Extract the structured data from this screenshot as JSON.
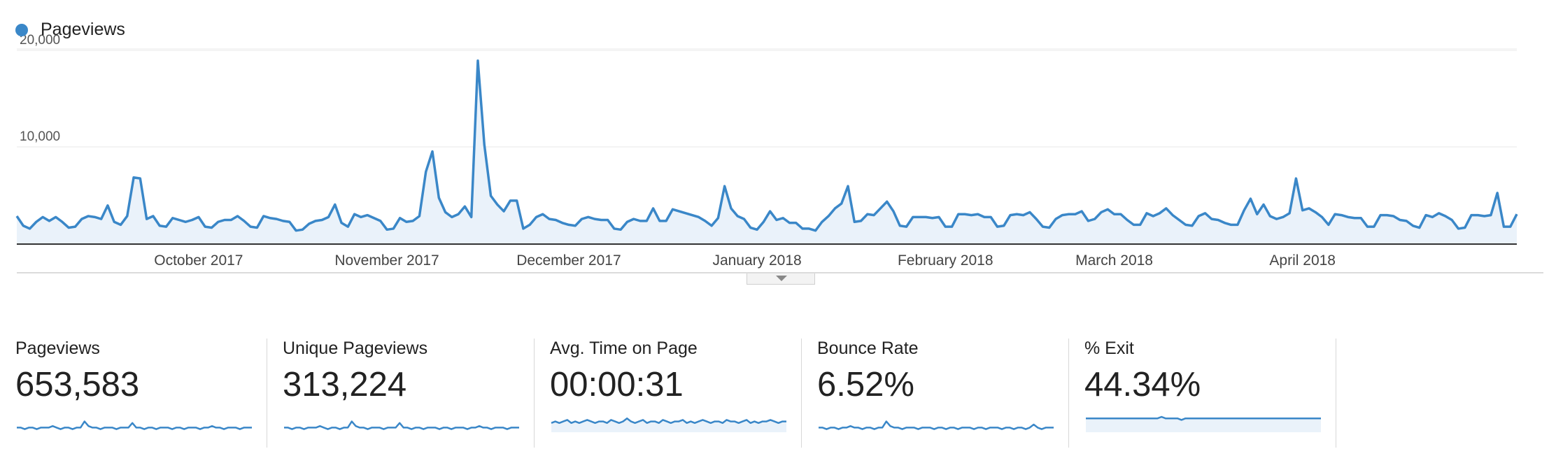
{
  "legend": {
    "label": "Pageviews",
    "color": "#3a87c8"
  },
  "chart_data": {
    "type": "area",
    "title": "",
    "xlabel": "",
    "ylabel": "",
    "series": [
      {
        "name": "Pageviews",
        "values": [
          2900,
          1900,
          1600,
          2300,
          2800,
          2400,
          2800,
          2300,
          1700,
          1800,
          2600,
          2900,
          2800,
          2600,
          4000,
          2300,
          2000,
          2900,
          6900,
          6800,
          2600,
          2900,
          1900,
          1800,
          2700,
          2500,
          2300,
          2500,
          2800,
          1800,
          1700,
          2300,
          2500,
          2500,
          2900,
          2400,
          1800,
          1700,
          2900,
          2700,
          2600,
          2400,
          2300,
          1400,
          1500,
          2100,
          2400,
          2500,
          2800,
          4100,
          2200,
          1800,
          3100,
          2800,
          3000,
          2700,
          2400,
          1500,
          1600,
          2700,
          2300,
          2400,
          2900,
          7500,
          9600,
          4800,
          3300,
          2800,
          3100,
          3900,
          2800,
          19000,
          10300,
          5000,
          4100,
          3400,
          4500,
          4500,
          1600,
          2000,
          2800,
          3100,
          2600,
          2500,
          2200,
          2000,
          1900,
          2600,
          2800,
          2600,
          2500,
          2500,
          1600,
          1500,
          2300,
          2600,
          2400,
          2400,
          3700,
          2400,
          2400,
          3600,
          3400,
          3200,
          3000,
          2800,
          2400,
          1900,
          2700,
          6000,
          3700,
          2900,
          2600,
          1700,
          1500,
          2300,
          3400,
          2500,
          2700,
          2200,
          2200,
          1600,
          1600,
          1400,
          2300,
          2900,
          3700,
          4200,
          6000,
          2300,
          2400,
          3100,
          3000,
          3700,
          4400,
          3400,
          1900,
          1800,
          2800,
          2800,
          2800,
          2700,
          2800,
          1800,
          1800,
          3100,
          3100,
          3000,
          3100,
          2800,
          2800,
          1800,
          1900,
          3000,
          3100,
          3000,
          3300,
          2600,
          1800,
          1700,
          2600,
          3000,
          3100,
          3100,
          3400,
          2400,
          2600,
          3300,
          3600,
          3100,
          3100,
          2500,
          2000,
          2000,
          3200,
          2900,
          3200,
          3700,
          3000,
          2500,
          2000,
          1900,
          2900,
          3200,
          2600,
          2500,
          2200,
          2000,
          2000,
          3500,
          4700,
          3100,
          4100,
          2900,
          2600,
          2800,
          3200,
          6800,
          3500,
          3700,
          3300,
          2800,
          2000,
          3100,
          3000,
          2800,
          2700,
          2700,
          1800,
          1800,
          3000,
          3000,
          2900,
          2500,
          2400,
          1900,
          1700,
          3000,
          2800,
          3200,
          2900,
          2500,
          1600,
          1700,
          3000,
          3000,
          2900,
          3000,
          5300,
          1800,
          1800,
          3100
        ]
      }
    ],
    "ylim": [
      0,
      20000
    ],
    "y_ticks": [
      10000,
      20000
    ],
    "y_tick_labels": [
      "10,000",
      "20,000"
    ],
    "x_tick_labels": [
      "October 2017",
      "November 2017",
      "December 2017",
      "January 2018",
      "February 2018",
      "March 2018",
      "April 2018"
    ],
    "x_tick_index": [
      28,
      57,
      85,
      114,
      143,
      169,
      198
    ],
    "grid": true,
    "legend_position": "top-left"
  },
  "metrics": [
    {
      "label": "Pageviews",
      "value": "653,583",
      "spark": [
        3,
        3,
        2,
        3,
        3,
        2,
        3,
        3,
        3,
        4,
        3,
        2,
        3,
        3,
        2,
        3,
        3,
        7,
        4,
        3,
        3,
        2,
        3,
        3,
        3,
        2,
        3,
        3,
        3,
        6,
        3,
        3,
        2,
        3,
        3,
        2,
        3,
        3,
        3,
        2,
        3,
        3,
        2,
        3,
        3,
        3,
        2,
        3,
        3,
        4,
        3,
        3,
        2,
        3,
        3,
        3,
        2,
        3,
        3,
        3
      ],
      "fill": false
    },
    {
      "label": "Unique Pageviews",
      "value": "313,224",
      "spark": [
        3,
        3,
        2,
        3,
        3,
        2,
        3,
        3,
        3,
        4,
        3,
        2,
        3,
        3,
        2,
        3,
        3,
        7,
        4,
        3,
        3,
        2,
        3,
        3,
        3,
        2,
        3,
        3,
        3,
        6,
        3,
        3,
        2,
        3,
        3,
        2,
        3,
        3,
        3,
        2,
        3,
        3,
        2,
        3,
        3,
        3,
        2,
        3,
        3,
        4,
        3,
        3,
        2,
        3,
        3,
        3,
        2,
        3,
        3,
        3
      ],
      "fill": false
    },
    {
      "label": "Avg. Time on Page",
      "value": "00:00:31",
      "spark": [
        6,
        7,
        6,
        7,
        8,
        6,
        7,
        6,
        7,
        8,
        7,
        6,
        7,
        7,
        6,
        8,
        7,
        6,
        7,
        9,
        7,
        6,
        7,
        8,
        6,
        7,
        7,
        6,
        8,
        7,
        6,
        7,
        7,
        8,
        6,
        7,
        6,
        7,
        8,
        7,
        6,
        7,
        7,
        6,
        8,
        7,
        7,
        6,
        7,
        8,
        6,
        7,
        6,
        7,
        7,
        8,
        7,
        6,
        7,
        7
      ],
      "fill": true
    },
    {
      "label": "Bounce Rate",
      "value": "6.52%",
      "spark": [
        3,
        3,
        2,
        3,
        3,
        2,
        3,
        3,
        4,
        3,
        3,
        2,
        3,
        3,
        2,
        3,
        3,
        7,
        4,
        3,
        3,
        2,
        3,
        3,
        3,
        2,
        3,
        3,
        3,
        2,
        3,
        3,
        2,
        3,
        3,
        2,
        3,
        3,
        3,
        2,
        3,
        3,
        2,
        3,
        3,
        3,
        2,
        3,
        3,
        2,
        3,
        3,
        2,
        3,
        5,
        3,
        2,
        3,
        3,
        3
      ],
      "fill": false
    },
    {
      "label": "% Exit",
      "value": "44.34%",
      "spark": [
        9,
        9,
        9,
        9,
        9,
        9,
        9,
        9,
        9,
        9,
        9,
        9,
        9,
        9,
        9,
        9,
        9,
        9,
        9,
        10,
        9,
        9,
        9,
        9,
        8,
        9,
        9,
        9,
        9,
        9,
        9,
        9,
        9,
        9,
        9,
        9,
        9,
        9,
        9,
        9,
        9,
        9,
        9,
        9,
        9,
        9,
        9,
        9,
        9,
        9,
        9,
        9,
        9,
        9,
        9,
        9,
        9,
        9,
        9,
        9
      ],
      "fill": true
    }
  ],
  "colors": {
    "line": "#3a87c8",
    "fill": "#eaf2fa",
    "grid": "#e8e8e8",
    "axis": "#333333"
  }
}
